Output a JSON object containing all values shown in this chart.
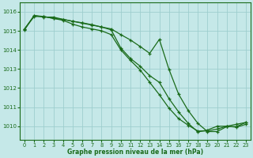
{
  "title": "Graphe pression niveau de la mer (hPa)",
  "background_color": "#c5e8e8",
  "grid_color": "#9ecece",
  "line_color": "#1a6b1a",
  "xlim": [
    -0.5,
    23.5
  ],
  "ylim": [
    1009.3,
    1016.5
  ],
  "yticks": [
    1010,
    1011,
    1012,
    1013,
    1014,
    1015,
    1016
  ],
  "xticks": [
    0,
    1,
    2,
    3,
    4,
    5,
    6,
    7,
    8,
    9,
    10,
    11,
    12,
    13,
    14,
    15,
    16,
    17,
    18,
    19,
    20,
    21,
    22,
    23
  ],
  "series": [
    [
      1015.1,
      1015.75,
      1015.75,
      1015.65,
      1015.6,
      1015.5,
      1015.4,
      1015.3,
      1015.2,
      1015.05,
      1014.1,
      1013.55,
      1013.15,
      1012.65,
      1012.3,
      1011.45,
      1010.75,
      1010.15,
      1009.7,
      1009.8,
      1010.0,
      1010.0,
      1010.1,
      1010.2
    ],
    [
      1015.1,
      1015.8,
      1015.75,
      1015.65,
      1015.55,
      1015.35,
      1015.2,
      1015.1,
      1015.0,
      1014.8,
      1014.0,
      1013.45,
      1012.95,
      1012.3,
      1011.65,
      1010.95,
      1010.4,
      1010.05,
      1009.75,
      1009.75,
      1009.85,
      1010.0,
      1009.95,
      1010.1
    ],
    [
      1015.05,
      1015.8,
      1015.72,
      1015.72,
      1015.6,
      1015.5,
      1015.42,
      1015.32,
      1015.2,
      1015.1,
      1014.8,
      1014.52,
      1014.18,
      1013.82,
      1014.55,
      1012.98,
      1011.68,
      1010.82,
      1010.15,
      1009.72,
      1009.72,
      1009.98,
      1009.98,
      1010.2
    ]
  ]
}
